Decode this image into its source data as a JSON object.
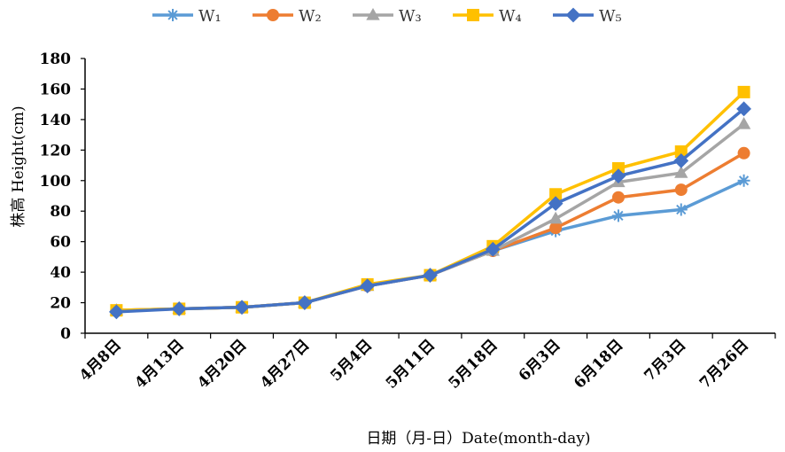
{
  "chart_data": {
    "type": "line",
    "title": "",
    "xlabel": "日期（月-日）Date(month-day)",
    "ylabel": "株高 Height(cm)",
    "categories": [
      "4月8日",
      "4月13日",
      "4月20日",
      "4月27日",
      "5月4日",
      "5月11日",
      "5月18日",
      "6月3日",
      "6月18日",
      "7月3日",
      "7月26日"
    ],
    "ylim": [
      0,
      180
    ],
    "yticks": [
      "0",
      "20",
      "40",
      "60",
      "80",
      "100",
      "120",
      "140",
      "160",
      "180"
    ],
    "grid": false,
    "legend_position": "top",
    "series": [
      {
        "name": "W₁",
        "color": "#5b9bd5",
        "marker": "asterisk",
        "values": [
          15,
          16,
          17,
          20,
          31,
          38,
          54,
          67,
          77,
          81,
          100
        ]
      },
      {
        "name": "W₂",
        "color": "#ed7d31",
        "marker": "circle",
        "values": [
          15,
          16,
          17,
          20,
          31,
          38,
          54,
          69,
          89,
          94,
          118
        ]
      },
      {
        "name": "W₃",
        "color": "#a5a5a5",
        "marker": "triangle",
        "values": [
          15,
          16,
          17,
          20,
          31,
          38,
          54,
          75,
          99,
          105,
          137
        ]
      },
      {
        "name": "W₄",
        "color": "#ffc000",
        "marker": "square",
        "values": [
          15,
          16,
          17,
          20,
          32,
          38,
          57,
          91,
          108,
          119,
          158
        ]
      },
      {
        "name": "W₅",
        "color": "#4472c4",
        "marker": "diamond",
        "values": [
          14,
          16,
          17,
          20,
          31,
          38,
          55,
          85,
          103,
          113,
          147
        ]
      }
    ]
  }
}
